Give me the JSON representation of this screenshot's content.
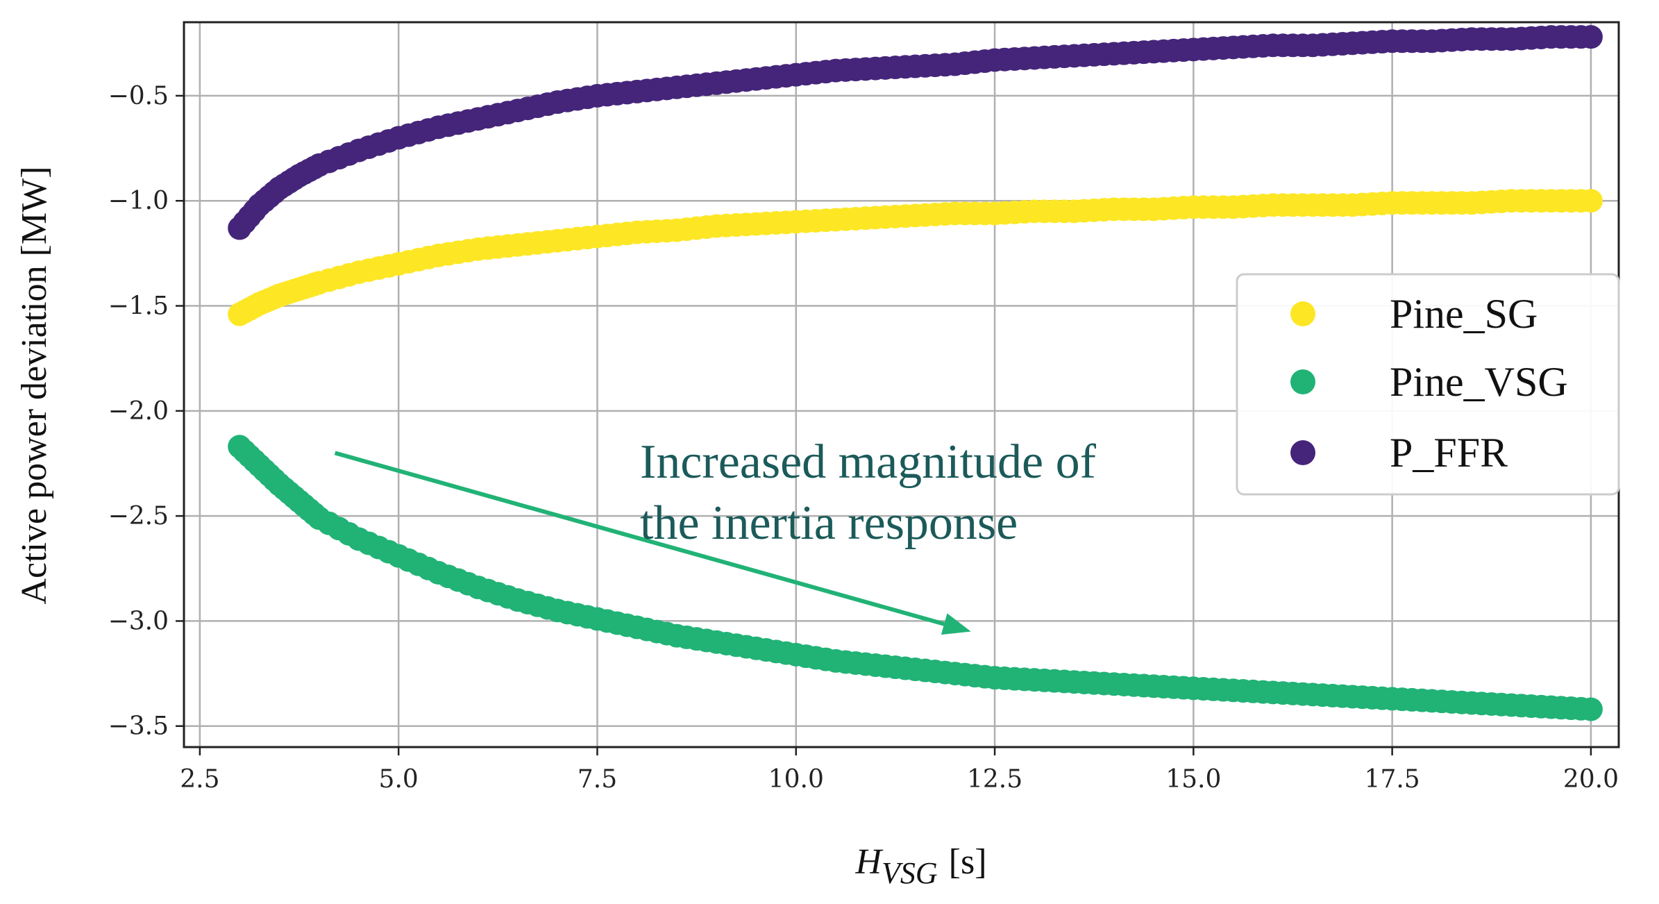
{
  "chart_data": {
    "type": "scatter",
    "title": "",
    "xlabel_main": "H",
    "xlabel_sub": "VSG",
    "xlabel_unit": "[s]",
    "ylabel": "Active power deviation [MW]",
    "xlim": [
      2.3,
      20.35
    ],
    "ylim": [
      -3.6,
      -0.15
    ],
    "xticks": [
      2.5,
      5.0,
      7.5,
      10.0,
      12.5,
      15.0,
      17.5,
      20.0
    ],
    "xtick_labels": [
      "2.5",
      "5.0",
      "7.5",
      "10.0",
      "12.5",
      "15.0",
      "17.5",
      "20.0"
    ],
    "yticks": [
      -0.5,
      -1.0,
      -1.5,
      -2.0,
      -2.5,
      -3.0,
      -3.5
    ],
    "ytick_labels": [
      "−0.5",
      "−1.0",
      "−1.5",
      "−2.0",
      "−2.5",
      "−3.0",
      "−3.5"
    ],
    "grid": true,
    "legend_position": "center-right",
    "x": [
      3.0,
      3.25,
      3.5,
      3.75,
      4.0,
      4.5,
      5.0,
      5.5,
      6.0,
      6.5,
      7.0,
      7.5,
      8.0,
      8.5,
      9.0,
      9.5,
      10.0,
      10.5,
      11.0,
      11.5,
      12.0,
      12.5,
      13.0,
      13.5,
      14.0,
      14.5,
      15.0,
      15.5,
      16.0,
      16.5,
      17.0,
      17.5,
      18.0,
      18.5,
      19.0,
      19.5,
      20.0
    ],
    "series": [
      {
        "name": "Pine_SG",
        "color": "#fde725",
        "values": [
          -1.54,
          -1.49,
          -1.45,
          -1.42,
          -1.39,
          -1.34,
          -1.3,
          -1.26,
          -1.23,
          -1.21,
          -1.19,
          -1.17,
          -1.15,
          -1.14,
          -1.12,
          -1.11,
          -1.1,
          -1.09,
          -1.08,
          -1.07,
          -1.06,
          -1.06,
          -1.05,
          -1.05,
          -1.04,
          -1.04,
          -1.03,
          -1.03,
          -1.02,
          -1.02,
          -1.02,
          -1.01,
          -1.01,
          -1.01,
          -1.0,
          -1.0,
          -1.0
        ]
      },
      {
        "name": "Pine_VSG",
        "color": "#21b276",
        "values": [
          -2.17,
          -2.26,
          -2.35,
          -2.43,
          -2.51,
          -2.61,
          -2.69,
          -2.77,
          -2.84,
          -2.9,
          -2.95,
          -2.99,
          -3.03,
          -3.07,
          -3.1,
          -3.13,
          -3.16,
          -3.19,
          -3.21,
          -3.23,
          -3.25,
          -3.27,
          -3.28,
          -3.29,
          -3.3,
          -3.31,
          -3.32,
          -3.33,
          -3.34,
          -3.35,
          -3.36,
          -3.37,
          -3.38,
          -3.39,
          -3.4,
          -3.41,
          -3.42
        ]
      },
      {
        "name": "P_FFR",
        "color": "#45257a",
        "values": [
          -1.13,
          -1.02,
          -0.94,
          -0.88,
          -0.83,
          -0.76,
          -0.7,
          -0.65,
          -0.61,
          -0.57,
          -0.53,
          -0.5,
          -0.48,
          -0.46,
          -0.44,
          -0.42,
          -0.4,
          -0.38,
          -0.37,
          -0.36,
          -0.35,
          -0.33,
          -0.32,
          -0.31,
          -0.3,
          -0.29,
          -0.28,
          -0.27,
          -0.26,
          -0.26,
          -0.25,
          -0.24,
          -0.24,
          -0.23,
          -0.23,
          -0.22,
          -0.22
        ]
      }
    ],
    "annotation": {
      "line1": "Increased magnitude of",
      "line2": "the inertia response",
      "color": "#1c5a5a",
      "arrow_color": "#21b276",
      "arrow_from": [
        4.2,
        -2.2
      ],
      "arrow_to": [
        12.2,
        -3.05
      ]
    }
  }
}
